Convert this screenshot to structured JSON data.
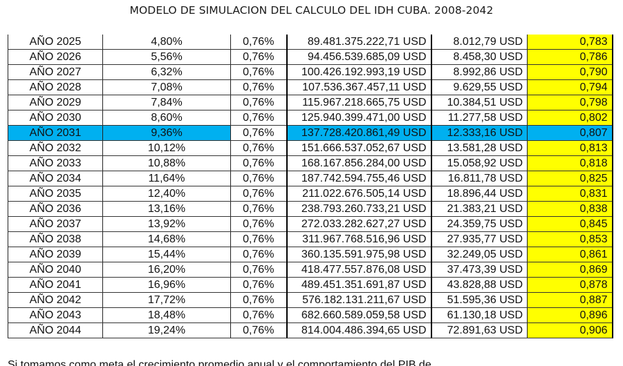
{
  "document": {
    "title": "MODELO DE SIMULACION DEL CALCULO DEL IDH CUBA. 2008-2042",
    "highlight_color": "#00b0f0",
    "idh_column_color": "#ffff00",
    "rows": [
      {
        "year": "AÑO 2025",
        "pct": "4,80%",
        "rate": "0,76%",
        "gdp": "89.481.375.222,71 USD",
        "per_capita": "8.012,79 USD",
        "idh": "0,783"
      },
      {
        "year": "AÑO 2026",
        "pct": "5,56%",
        "rate": "0,76%",
        "gdp": "94.456.539.685,09 USD",
        "per_capita": "8.458,30 USD",
        "idh": "0,786"
      },
      {
        "year": "AÑO 2027",
        "pct": "6,32%",
        "rate": "0,76%",
        "gdp": "100.426.192.993,19 USD",
        "per_capita": "8.992,86 USD",
        "idh": "0,790"
      },
      {
        "year": "AÑO 2028",
        "pct": "7,08%",
        "rate": "0,76%",
        "gdp": "107.536.367.457,11 USD",
        "per_capita": "9.629,55 USD",
        "idh": "0,794"
      },
      {
        "year": "AÑO 2029",
        "pct": "7,84%",
        "rate": "0,76%",
        "gdp": "115.967.218.665,75 USD",
        "per_capita": "10.384,51 USD",
        "idh": "0,798"
      },
      {
        "year": "AÑO 2030",
        "pct": "8,60%",
        "rate": "0,76%",
        "gdp": "125.940.399.471,00 USD",
        "per_capita": "11.277,58 USD",
        "idh": "0,802"
      },
      {
        "year": "AÑO 2031",
        "pct": "9,36%",
        "rate": "0,76%",
        "gdp": "137.728.420.861,49 USD",
        "per_capita": "12.333,16 USD",
        "idh": "0,807",
        "highlighted": true
      },
      {
        "year": "AÑO 2032",
        "pct": "10,12%",
        "rate": "0,76%",
        "gdp": "151.666.537.052,67 USD",
        "per_capita": "13.581,28 USD",
        "idh": "0,813"
      },
      {
        "year": "AÑO 2033",
        "pct": "10,88%",
        "rate": "0,76%",
        "gdp": "168.167.856.284,00 USD",
        "per_capita": "15.058,92 USD",
        "idh": "0,818"
      },
      {
        "year": "AÑO 2034",
        "pct": "11,64%",
        "rate": "0,76%",
        "gdp": "187.742.594.755,46 USD",
        "per_capita": "16.811,78 USD",
        "idh": "0,825"
      },
      {
        "year": "AÑO 2035",
        "pct": "12,40%",
        "rate": "0,76%",
        "gdp": "211.022.676.505,14 USD",
        "per_capita": "18.896,44 USD",
        "idh": "0,831"
      },
      {
        "year": "AÑO 2036",
        "pct": "13,16%",
        "rate": "0,76%",
        "gdp": "238.793.260.733,21 USD",
        "per_capita": "21.383,21 USD",
        "idh": "0,838"
      },
      {
        "year": "AÑO 2037",
        "pct": "13,92%",
        "rate": "0,76%",
        "gdp": "272.033.282.627,27 USD",
        "per_capita": "24.359,75 USD",
        "idh": "0,845"
      },
      {
        "year": "AÑO 2038",
        "pct": "14,68%",
        "rate": "0,76%",
        "gdp": "311.967.768.516,96 USD",
        "per_capita": "27.935,77 USD",
        "idh": "0,853"
      },
      {
        "year": "AÑO 2039",
        "pct": "15,44%",
        "rate": "0,76%",
        "gdp": "360.135.591.975,98 USD",
        "per_capita": "32.249,05 USD",
        "idh": "0,861"
      },
      {
        "year": "AÑO 2040",
        "pct": "16,20%",
        "rate": "0,76%",
        "gdp": "418.477.557.876,08 USD",
        "per_capita": "37.473,39 USD",
        "idh": "0,869"
      },
      {
        "year": "AÑO 2041",
        "pct": "16,96%",
        "rate": "0,76%",
        "gdp": "489.451.351.691,87 USD",
        "per_capita": "43.828,88 USD",
        "idh": "0,878"
      },
      {
        "year": "AÑO 2042",
        "pct": "17,72%",
        "rate": "0,76%",
        "gdp": "576.182.131.211,67 USD",
        "per_capita": "51.595,36 USD",
        "idh": "0,887"
      },
      {
        "year": "AÑO 2043",
        "pct": "18,48%",
        "rate": "0,76%",
        "gdp": "682.660.589.059,58 USD",
        "per_capita": "61.130,18 USD",
        "idh": "0,896"
      },
      {
        "year": "AÑO 2044",
        "pct": "19,24%",
        "rate": "0,76%",
        "gdp": "814.004.486.394,65 USD",
        "per_capita": "72.891,63 USD",
        "idh": "0,906"
      }
    ],
    "cutoff_text": "Si tomamos como meta el crecimiento promedio anual y el comportamiento del PIB de"
  }
}
